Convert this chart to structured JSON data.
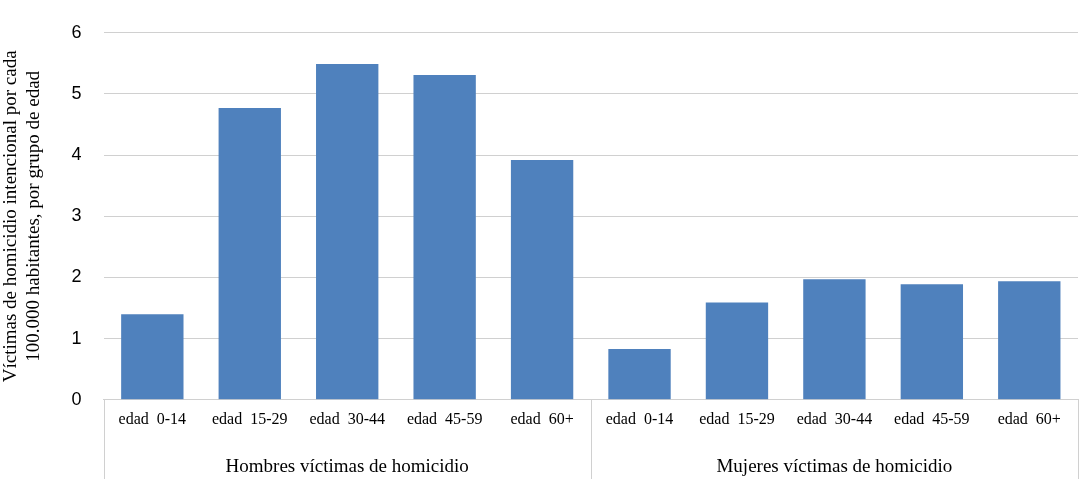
{
  "chart_data": {
    "type": "bar",
    "ylabel": "Víctimas de homicidio intencional por cada\n100.000 habitantes, por grupo de edad",
    "categories": [
      "edad  0-14",
      "edad  15-29",
      "edad  30-44",
      "edad  45-59",
      "edad  60+",
      "edad  0-14",
      "edad  15-29",
      "edad  30-44",
      "edad  45-59",
      "edad  60+"
    ],
    "values": [
      1.4,
      4.77,
      5.49,
      5.31,
      3.92,
      0.83,
      1.59,
      1.97,
      1.89,
      1.94
    ],
    "color": "#4f81bd",
    "ylim": [
      0,
      6
    ],
    "yticks": [
      0,
      1,
      2,
      3,
      4,
      5,
      6
    ],
    "grid": "y",
    "annotations": [
      "Hombres víctimas de homicidio",
      "Mujeres víctimas de homicidio"
    ]
  }
}
